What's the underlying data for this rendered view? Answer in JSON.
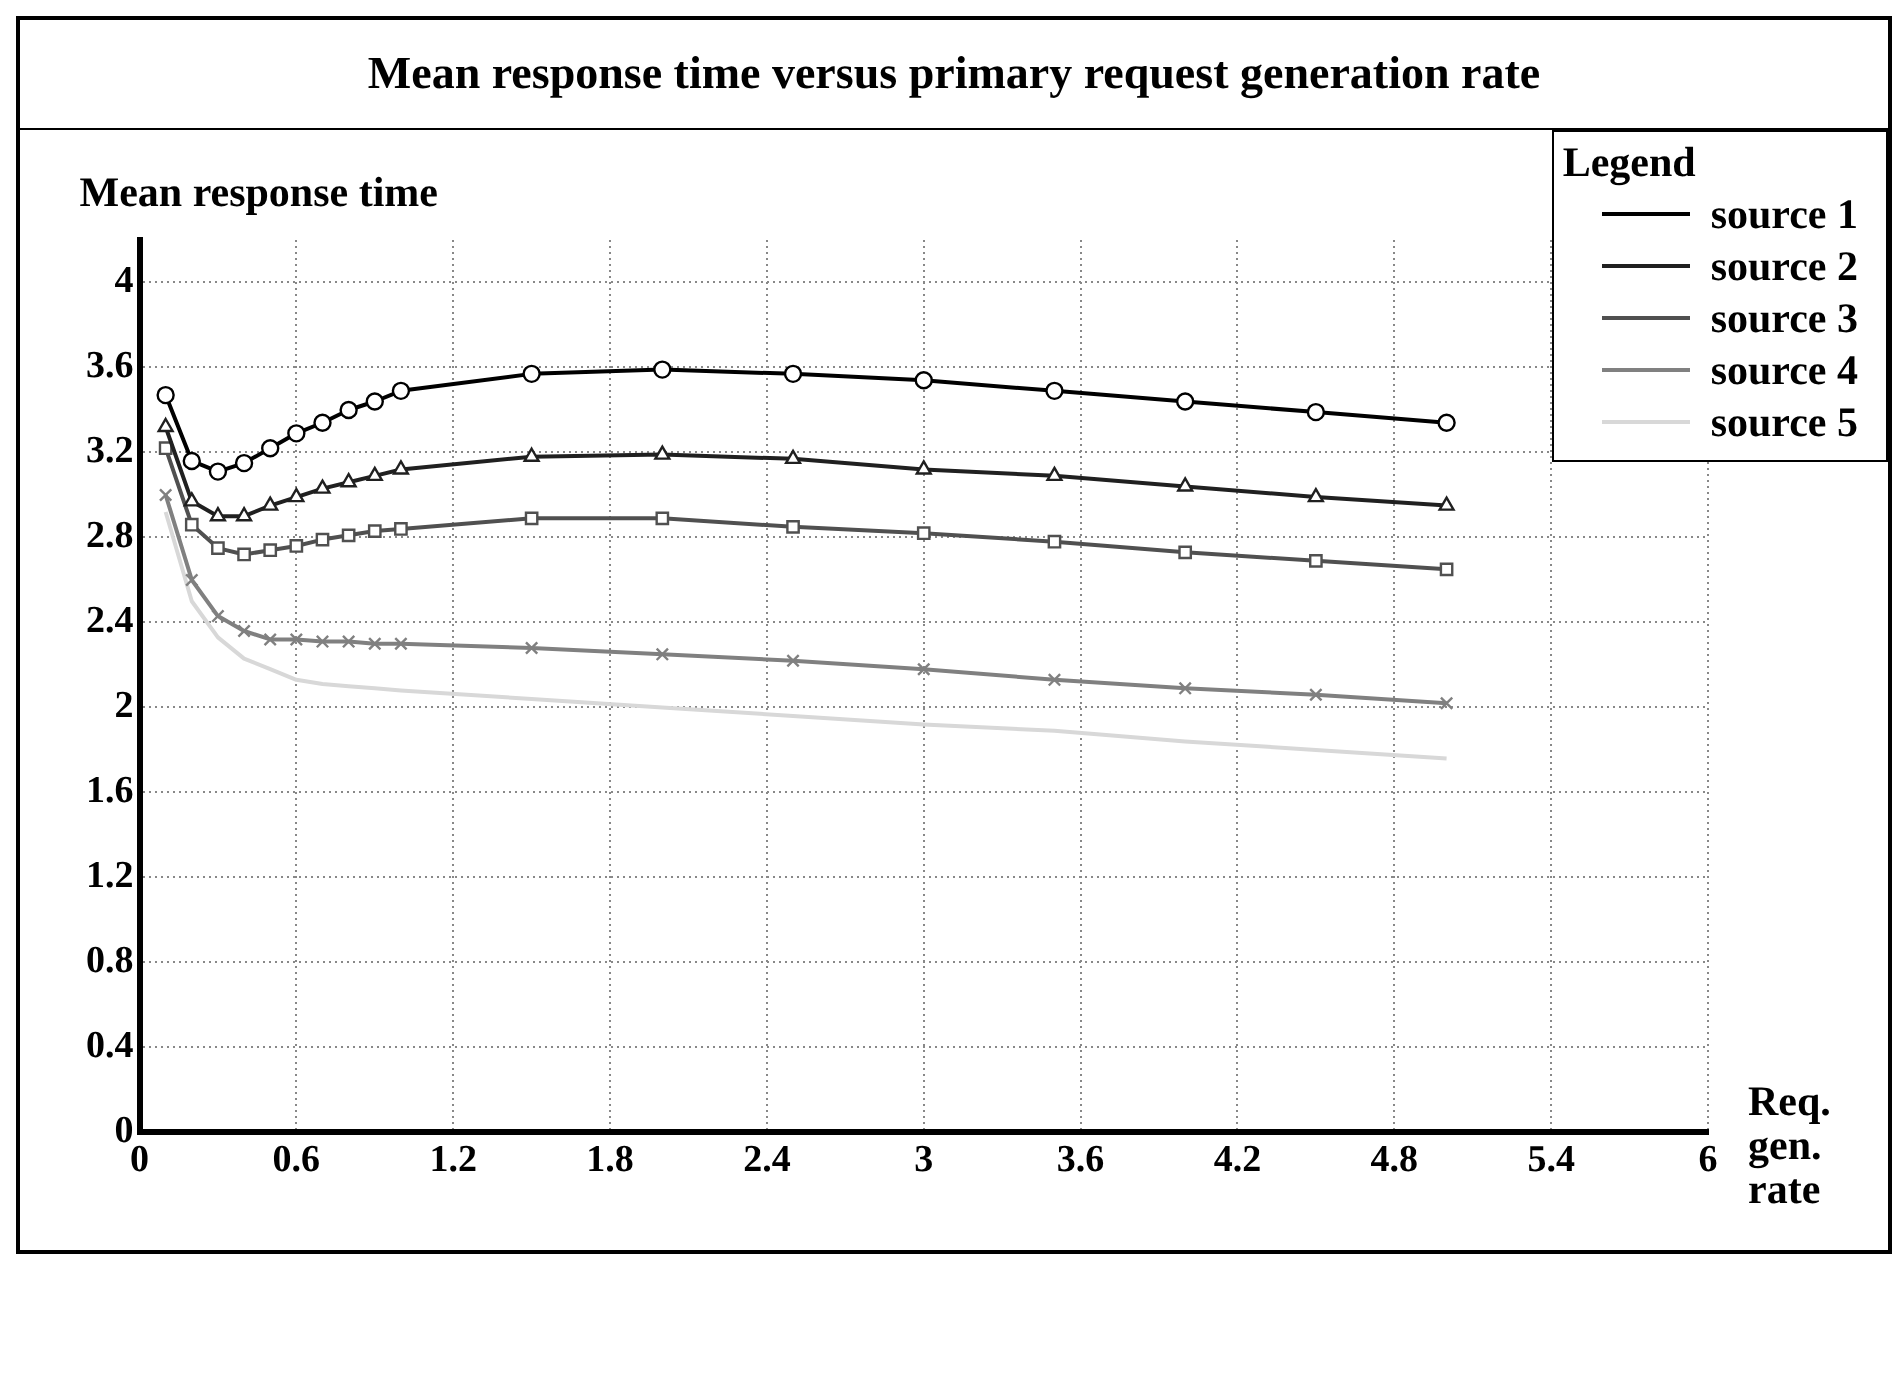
{
  "chart_data": {
    "type": "line",
    "title": "Mean response time versus primary request generation rate",
    "ylabel": "Mean response time",
    "xlabel": "Req. gen. rate",
    "legend_title": "Legend",
    "legend": "top right",
    "grid": true,
    "line_style": "solid",
    "x": [
      0.1,
      0.2,
      0.3,
      0.4,
      0.5,
      0.6,
      0.7,
      0.8,
      0.9,
      1.0,
      1.5,
      2.0,
      2.5,
      3.0,
      3.5,
      4.0,
      4.5,
      5.0
    ],
    "xlim": [
      0,
      6
    ],
    "xticks": [
      0,
      0.6,
      1.2,
      1.8,
      2.4,
      3,
      3.6,
      4.2,
      4.8,
      5.4,
      6
    ],
    "ylim": [
      0,
      4.2
    ],
    "yticks": [
      0,
      0.4,
      0.8,
      1.2,
      1.6,
      2,
      2.4,
      2.8,
      3.2,
      3.6,
      4
    ],
    "series": [
      {
        "name": "source 1",
        "color": "#000000",
        "marker": "circle",
        "values": [
          3.47,
          3.16,
          3.11,
          3.15,
          3.22,
          3.29,
          3.34,
          3.4,
          3.44,
          3.49,
          3.57,
          3.59,
          3.57,
          3.54,
          3.49,
          3.44,
          3.39,
          3.34
        ]
      },
      {
        "name": "source 2",
        "color": "#202020",
        "marker": "triangle",
        "values": [
          3.32,
          2.97,
          2.9,
          2.9,
          2.95,
          2.99,
          3.03,
          3.06,
          3.09,
          3.12,
          3.18,
          3.19,
          3.17,
          3.12,
          3.09,
          3.04,
          2.99,
          2.95
        ]
      },
      {
        "name": "source 3",
        "color": "#505050",
        "marker": "square",
        "values": [
          3.22,
          2.86,
          2.75,
          2.72,
          2.74,
          2.76,
          2.79,
          2.81,
          2.83,
          2.84,
          2.89,
          2.89,
          2.85,
          2.82,
          2.78,
          2.73,
          2.69,
          2.65
        ]
      },
      {
        "name": "source 4",
        "color": "#808080",
        "marker": "cross",
        "values": [
          3.0,
          2.6,
          2.43,
          2.36,
          2.32,
          2.32,
          2.31,
          2.31,
          2.3,
          2.3,
          2.28,
          2.25,
          2.22,
          2.18,
          2.13,
          2.09,
          2.06,
          2.02
        ]
      },
      {
        "name": "source 5",
        "color": "#d8d8d8",
        "marker": "none",
        "values": [
          2.92,
          2.5,
          2.33,
          2.23,
          2.18,
          2.13,
          2.11,
          2.1,
          2.09,
          2.08,
          2.04,
          2.0,
          1.96,
          1.92,
          1.89,
          1.84,
          1.8,
          1.76
        ]
      }
    ]
  }
}
